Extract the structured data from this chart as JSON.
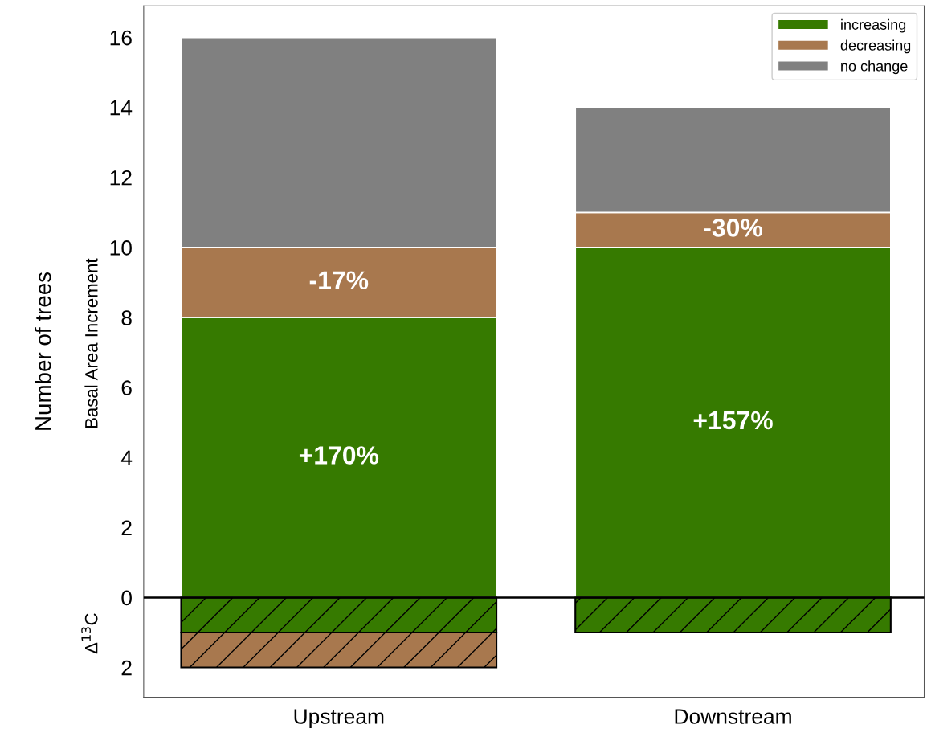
{
  "chart_data": {
    "type": "bar",
    "stacked": true,
    "ylabel": "Number of trees",
    "categories": [
      "Upstream",
      "Downstream"
    ],
    "series": [
      {
        "name": "increasing",
        "color": "#367a00",
        "values": [
          8,
          10
        ]
      },
      {
        "name": "decreasing",
        "color": "#a8784e",
        "values": [
          2,
          1
        ]
      },
      {
        "name": "no change",
        "color": "#808080",
        "values": [
          6,
          3
        ]
      },
      {
        "color": "#367a00",
        "values": [
          -1,
          -1
        ]
      },
      {
        "color": "#a8784e",
        "values": [
          -1,
          null
        ]
      }
    ],
    "ylim": [
      -2.85,
      16.9
    ],
    "yticks": [
      {
        "value": -2,
        "label": "2"
      },
      0,
      2,
      4,
      6,
      8,
      10,
      12,
      14,
      16
    ],
    "ref_lines": [
      {
        "axis": "y",
        "value": 0,
        "color": "#000000"
      }
    ],
    "annotations": [
      "Basal Area Increment",
      "Δ$^{13}$C",
      "+170%",
      "-17%",
      "+157%",
      "-30%"
    ],
    "legend": "top right",
    "grid": false
  }
}
